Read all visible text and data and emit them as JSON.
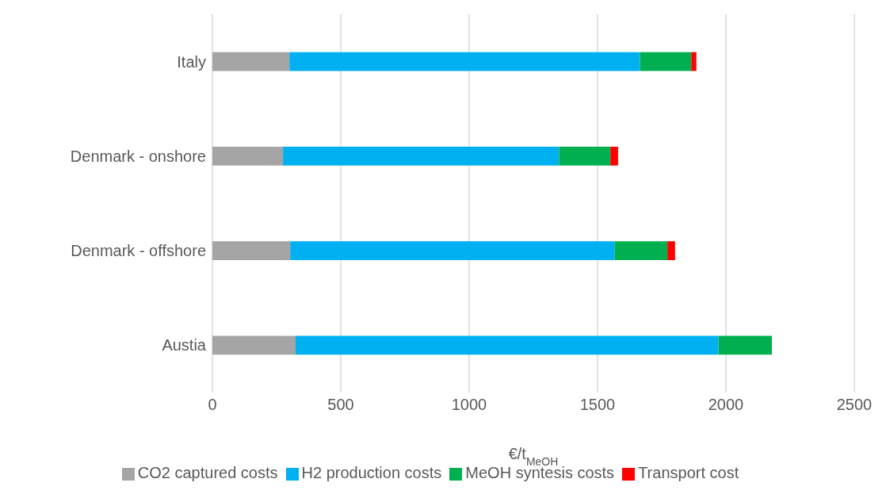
{
  "chart_data": {
    "type": "bar",
    "orientation": "horizontal",
    "stacked": true,
    "categories": [
      "Italy",
      "Denmark - onshore",
      "Denmark - offshore",
      "Austia"
    ],
    "series": [
      {
        "name": "CO2 captured costs",
        "color": "#a5a5a5",
        "values": [
          300,
          275,
          303,
          324
        ]
      },
      {
        "name": "H2 production costs",
        "color": "#00b0f0",
        "values": [
          1365,
          1075,
          1264,
          1647
        ]
      },
      {
        "name": "MeOH syntesis costs",
        "color": "#00b050",
        "values": [
          200,
          200,
          205,
          208
        ]
      },
      {
        "name": "Transport cost",
        "color": "#ff0000",
        "values": [
          20,
          30,
          30,
          0
        ]
      }
    ],
    "xlabel": "€/t$_{MeOH}$",
    "xlim": [
      0,
      2500
    ],
    "xticks": [
      0,
      500,
      1000,
      1500,
      2000,
      2500
    ],
    "grid": "x",
    "legend": "bottom"
  }
}
